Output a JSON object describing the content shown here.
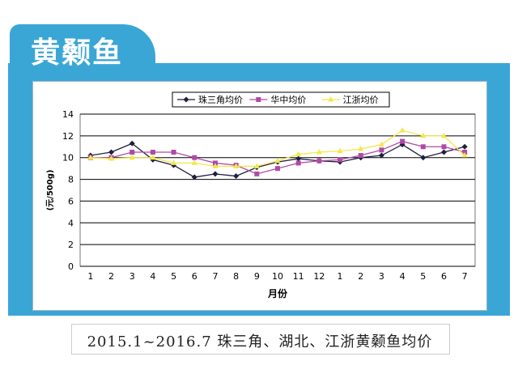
{
  "header": {
    "title": "黄颡鱼"
  },
  "caption": "2015.1~2016.7 珠三角、湖北、江浙黄颡鱼均价",
  "chart_data": {
    "type": "line",
    "categories": [
      "1",
      "2",
      "3",
      "4",
      "5",
      "6",
      "7",
      "8",
      "9",
      "10",
      "11",
      "12",
      "1",
      "2",
      "3",
      "4",
      "5",
      "6",
      "7"
    ],
    "xlabel": "月份",
    "ylabel": "(元/500g)",
    "ylim": [
      0,
      14
    ],
    "yticks": [
      0,
      2,
      4,
      6,
      8,
      10,
      12,
      14
    ],
    "grid": true,
    "legend_position": "top",
    "series": [
      {
        "name": "珠三角均价",
        "color": "#1f1f3f",
        "marker": "diamond",
        "values": [
          10.2,
          10.5,
          11.3,
          9.8,
          9.3,
          8.2,
          8.5,
          8.3,
          9.1,
          9.6,
          9.9,
          9.7,
          9.6,
          10.0,
          10.2,
          11.2,
          10.0,
          10.5,
          11.0
        ]
      },
      {
        "name": "华中均价",
        "color": "#b04aa6",
        "marker": "square",
        "values": [
          10.0,
          10.0,
          10.5,
          10.5,
          10.5,
          10.0,
          9.5,
          9.3,
          8.5,
          9.0,
          9.5,
          9.7,
          9.8,
          10.2,
          10.7,
          11.5,
          11.0,
          11.0,
          10.5
        ]
      },
      {
        "name": "江浙均价",
        "color": "#f2e84a",
        "marker": "triangle",
        "values": [
          10.0,
          9.9,
          10.0,
          10.0,
          9.5,
          9.5,
          9.2,
          9.2,
          9.2,
          9.7,
          10.3,
          10.5,
          10.6,
          10.8,
          11.2,
          12.5,
          12.0,
          12.0,
          10.2
        ]
      }
    ]
  }
}
